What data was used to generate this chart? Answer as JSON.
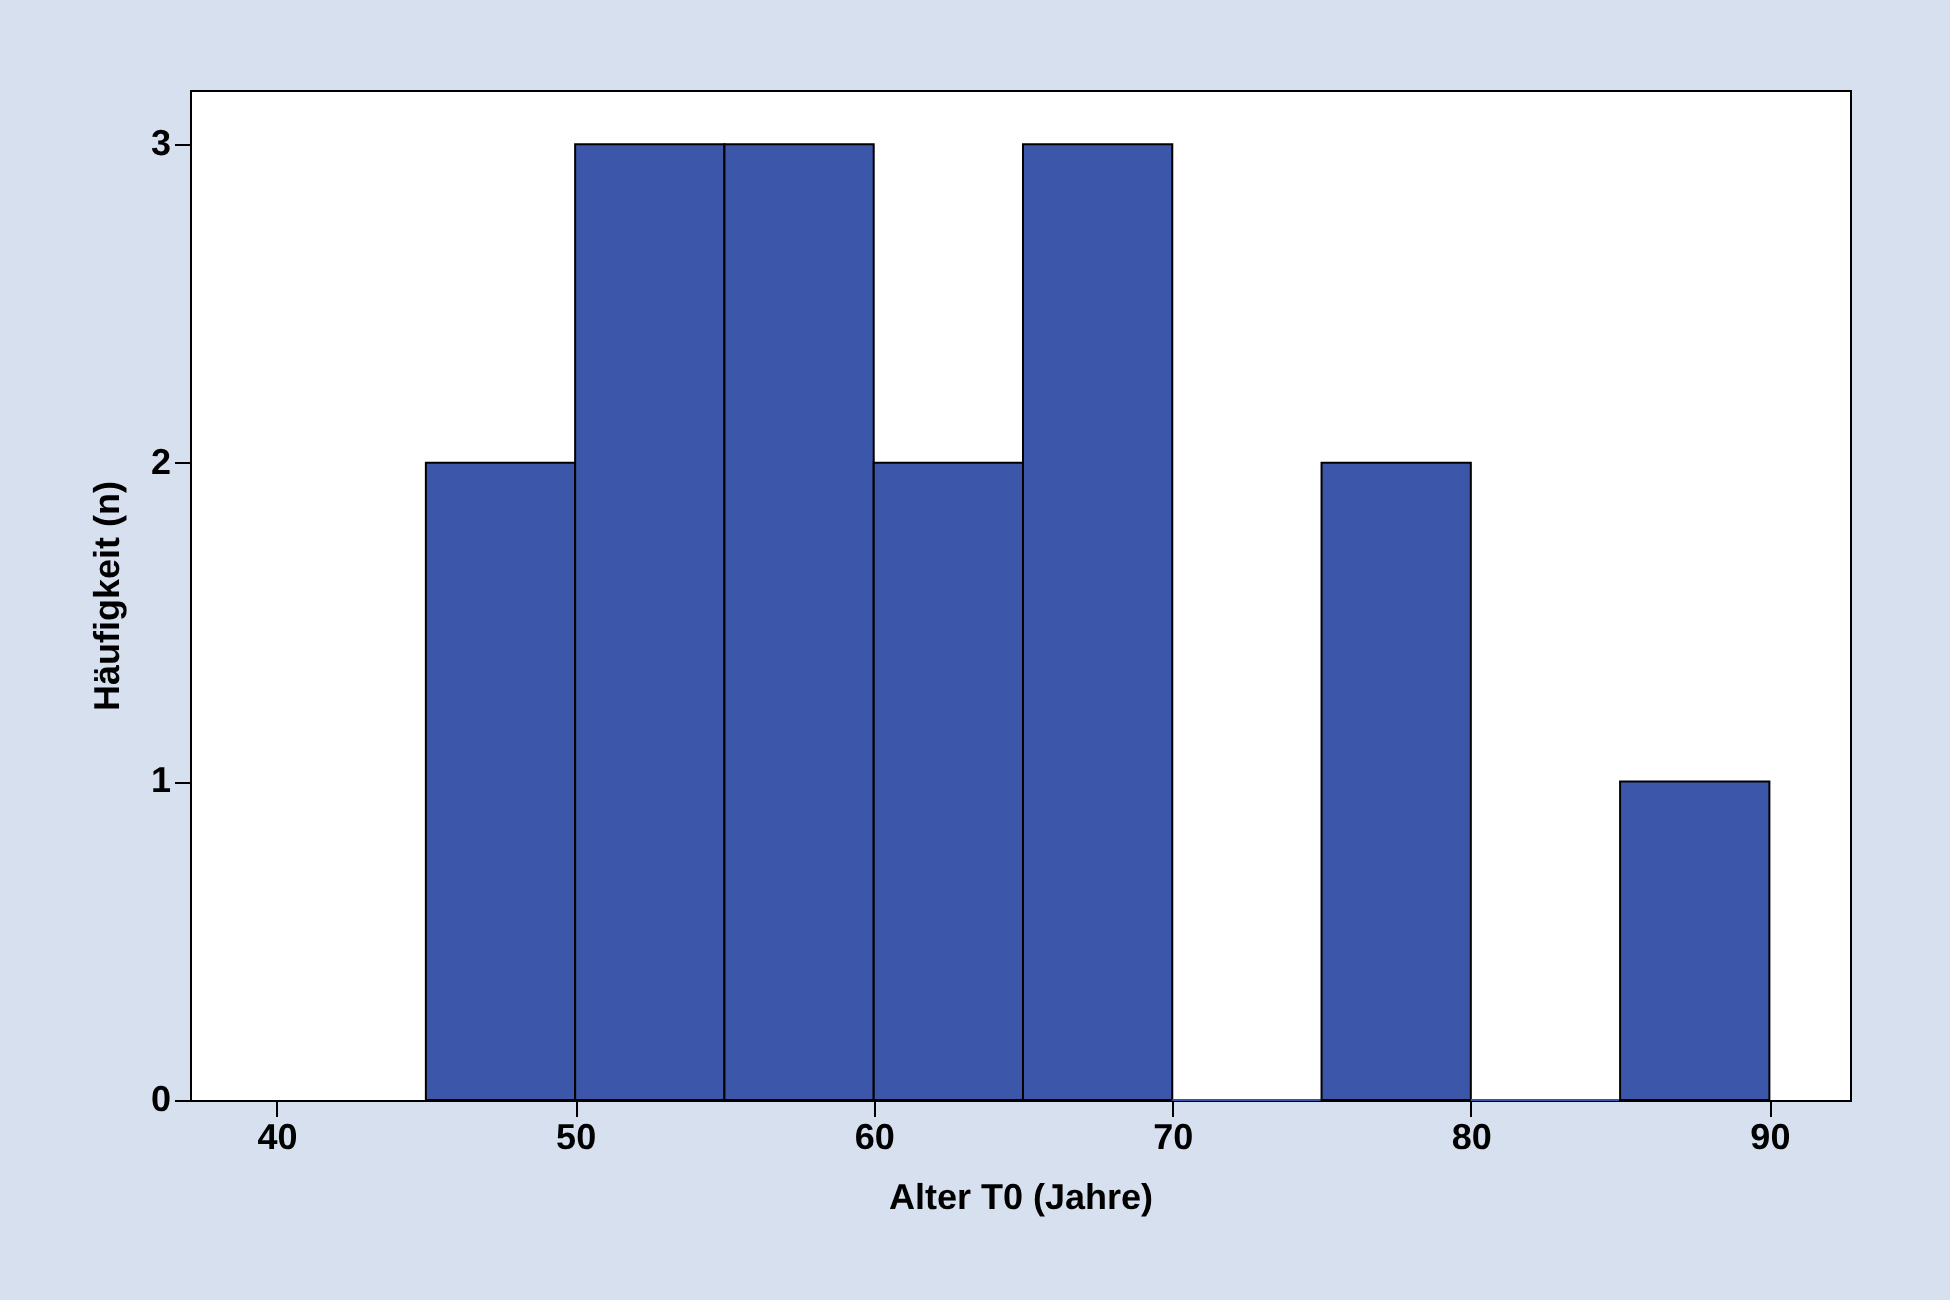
{
  "chart_data": {
    "type": "histogram",
    "xlabel": "Alter T0 (Jahre)",
    "ylabel": "Häufigkeit (n)",
    "bins": [
      45,
      50,
      55,
      60,
      65,
      70,
      75,
      80,
      85,
      90
    ],
    "values": [
      2,
      3,
      3,
      2,
      3,
      0,
      2,
      0,
      1
    ],
    "color": "#3c56a9",
    "xlim": [
      37.1,
      92.7
    ],
    "xticks": [
      40,
      50,
      60,
      70,
      80,
      90
    ],
    "ylim": [
      0,
      3.17
    ],
    "yticks": [
      0,
      1,
      2,
      3
    ],
    "grid": false
  }
}
